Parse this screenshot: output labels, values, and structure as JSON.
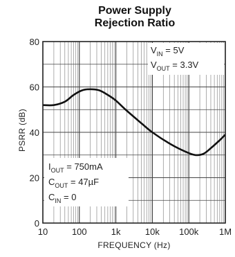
{
  "chart_data": {
    "type": "line",
    "title_line1": "Power Supply",
    "title_line2": "Rejection Ratio",
    "xlabel": "FREQUENCY (Hz)",
    "ylabel": "PSRR (dB)",
    "xscale": "log",
    "xlim": [
      10,
      1000000
    ],
    "ylim": [
      0,
      80
    ],
    "grid": true,
    "x_ticks": [
      {
        "value": 10,
        "label": "10"
      },
      {
        "value": 100,
        "label": "100"
      },
      {
        "value": 1000,
        "label": "1k"
      },
      {
        "value": 10000,
        "label": "10k"
      },
      {
        "value": 100000,
        "label": "100k"
      },
      {
        "value": 1000000,
        "label": "1M"
      }
    ],
    "y_ticks": [
      {
        "value": 0,
        "label": "0"
      },
      {
        "value": 20,
        "label": "20"
      },
      {
        "value": 40,
        "label": "40"
      },
      {
        "value": 60,
        "label": "60"
      },
      {
        "value": 80,
        "label": "80"
      }
    ],
    "series": [
      {
        "color": "#111111",
        "points": [
          {
            "x": 10,
            "y": 52
          },
          {
            "x": 20,
            "y": 52
          },
          {
            "x": 40,
            "y": 53.5
          },
          {
            "x": 70,
            "y": 56.5
          },
          {
            "x": 120,
            "y": 58.5
          },
          {
            "x": 200,
            "y": 59
          },
          {
            "x": 350,
            "y": 58.5
          },
          {
            "x": 600,
            "y": 56.5
          },
          {
            "x": 1000,
            "y": 54
          },
          {
            "x": 2000,
            "y": 49.5
          },
          {
            "x": 5000,
            "y": 44
          },
          {
            "x": 10000,
            "y": 40
          },
          {
            "x": 30000,
            "y": 35
          },
          {
            "x": 80000,
            "y": 31.5
          },
          {
            "x": 150000,
            "y": 30
          },
          {
            "x": 250000,
            "y": 30.5
          },
          {
            "x": 400000,
            "y": 33
          },
          {
            "x": 700000,
            "y": 36.5
          },
          {
            "x": 1000000,
            "y": 39
          }
        ]
      }
    ],
    "annotations": {
      "top_right": [
        {
          "main": "V",
          "sub": "IN",
          "rest": " = 5V"
        },
        {
          "main": "V",
          "sub": "OUT",
          "rest": " = 3.3V"
        }
      ],
      "bottom_left": [
        {
          "main": "I",
          "sub": "OUT",
          "rest": " = 750mA"
        },
        {
          "main": "C",
          "sub": "OUT",
          "rest": " = 47µF"
        },
        {
          "main": "C",
          "sub": "IN",
          "rest": " = 0"
        }
      ]
    }
  }
}
